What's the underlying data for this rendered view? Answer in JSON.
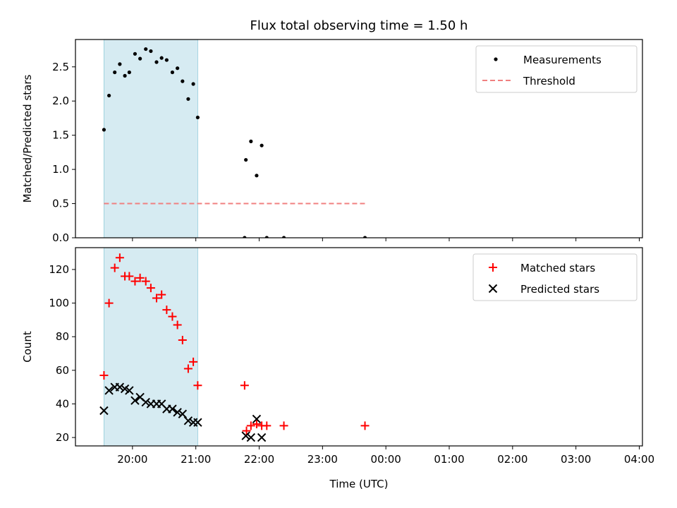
{
  "figure": {
    "title": "Flux total observing time = 1.50 h",
    "xlabel": "Time (UTC)"
  },
  "chart_data": [
    {
      "type": "scatter",
      "name": "ratio-panel",
      "ylabel": "Matched/Predicted stars",
      "xlim": [
        19.1,
        28.05
      ],
      "ylim": [
        0,
        2.9
      ],
      "yticks": [
        0.0,
        0.5,
        1.0,
        1.5,
        2.0,
        2.5
      ],
      "ytick_labels": [
        "0.0",
        "0.5",
        "1.0",
        "1.5",
        "2.0",
        "2.5"
      ],
      "legend_position": "top-right",
      "observing_span": [
        19.55,
        21.03
      ],
      "series": [
        {
          "name": "Measurements",
          "marker": "dot",
          "color": "#000000",
          "x": [
            19.55,
            19.63,
            19.72,
            19.8,
            19.88,
            19.95,
            20.04,
            20.12,
            20.21,
            20.29,
            20.38,
            20.46,
            20.54,
            20.63,
            20.71,
            20.79,
            20.88,
            20.96,
            21.03,
            21.79,
            21.87,
            21.96,
            22.04,
            21.77,
            22.12,
            22.39,
            23.67
          ],
          "y": [
            1.58,
            2.08,
            2.42,
            2.54,
            2.37,
            2.42,
            2.69,
            2.62,
            2.76,
            2.73,
            2.57,
            2.63,
            2.6,
            2.42,
            2.48,
            2.29,
            2.03,
            2.25,
            1.76,
            1.14,
            1.41,
            0.91,
            1.35,
            0.0,
            0.0,
            0.0,
            0.0
          ]
        },
        {
          "name": "Threshold",
          "marker": "dashed-line",
          "color": "#f08080",
          "x": [
            19.55,
            23.67
          ],
          "y": [
            0.5,
            0.5
          ]
        }
      ]
    },
    {
      "type": "scatter",
      "name": "count-panel",
      "ylabel": "Count",
      "xlim": [
        19.1,
        28.05
      ],
      "ylim": [
        15,
        133
      ],
      "yticks": [
        20,
        40,
        60,
        80,
        100,
        120
      ],
      "ytick_labels": [
        "20",
        "40",
        "60",
        "80",
        "100",
        "120"
      ],
      "xticks": [
        20,
        21,
        22,
        23,
        24,
        25,
        26,
        27,
        28
      ],
      "xtick_labels": [
        "20:00",
        "21:00",
        "22:00",
        "23:00",
        "00:00",
        "01:00",
        "02:00",
        "03:00",
        "04:00"
      ],
      "legend_position": "top-right",
      "observing_span": [
        19.55,
        21.03
      ],
      "series": [
        {
          "name": "Matched stars",
          "marker": "plus",
          "color": "#ff0000",
          "x": [
            19.55,
            19.63,
            19.72,
            19.8,
            19.88,
            19.95,
            20.04,
            20.12,
            20.21,
            20.29,
            20.38,
            20.46,
            20.54,
            20.63,
            20.71,
            20.79,
            20.88,
            20.96,
            21.03,
            21.77,
            21.8,
            21.87,
            21.96,
            22.04,
            22.12,
            22.39,
            23.67
          ],
          "y": [
            57,
            100,
            121,
            127,
            116,
            116,
            113,
            115,
            113,
            109,
            103,
            105,
            96,
            92,
            87,
            78,
            61,
            65,
            51,
            51,
            24,
            27,
            28,
            27,
            27,
            27,
            27
          ]
        },
        {
          "name": "Predicted stars",
          "marker": "x",
          "color": "#000000",
          "x": [
            19.55,
            19.63,
            19.72,
            19.8,
            19.88,
            19.95,
            20.04,
            20.12,
            20.21,
            20.29,
            20.38,
            20.46,
            20.54,
            20.63,
            20.71,
            20.79,
            20.88,
            20.96,
            21.03,
            21.79,
            21.87,
            21.96,
            22.04
          ],
          "y": [
            36,
            48,
            50,
            50,
            49,
            48,
            42,
            44,
            41,
            40,
            40,
            40,
            37,
            37,
            35,
            34,
            30,
            29,
            29,
            21,
            20,
            31,
            20
          ]
        }
      ]
    }
  ]
}
